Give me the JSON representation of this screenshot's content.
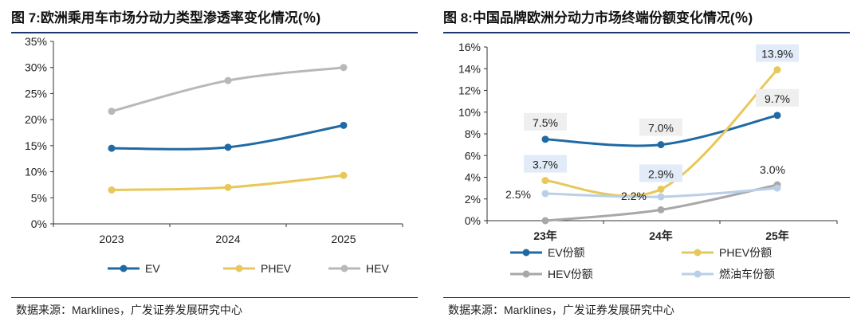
{
  "chart_data": [
    {
      "type": "line",
      "title": "图 7:欧洲乘用车市场分动力类型渗透率变化情况(％)",
      "categories": [
        "2023",
        "2024",
        "2025"
      ],
      "ylim": [
        0,
        35
      ],
      "yticks": [
        "0%",
        "5%",
        "10%",
        "15%",
        "20%",
        "25%",
        "30%",
        "35%"
      ],
      "series": [
        {
          "name": "EV",
          "color": "#1f6aa5",
          "values": [
            14.5,
            14.7,
            18.9
          ]
        },
        {
          "name": "PHEV",
          "color": "#e8c85a",
          "values": [
            6.5,
            7.0,
            9.3
          ]
        },
        {
          "name": "HEV",
          "color": "#b8b8b8",
          "values": [
            21.6,
            27.5,
            30.0
          ]
        }
      ],
      "legend": "bottom",
      "source": "数据来源：Marklines，广发证券发展研究中心"
    },
    {
      "type": "line",
      "title": "图 8:中国品牌欧洲分动力市场终端份额变化情况(％)",
      "categories": [
        "23年",
        "24年",
        "25年"
      ],
      "ylim": [
        0,
        16
      ],
      "yticks": [
        "0%",
        "2%",
        "4%",
        "6%",
        "8%",
        "10%",
        "12%",
        "14%",
        "16%"
      ],
      "series": [
        {
          "name": "EV份额",
          "color": "#1f6aa5",
          "values": [
            7.5,
            7.0,
            9.7
          ],
          "labels": [
            "7.5%",
            "7.0%",
            "9.7%"
          ]
        },
        {
          "name": "PHEV份额",
          "color": "#e8c85a",
          "values": [
            3.7,
            2.9,
            13.9
          ],
          "labels": [
            "3.7%",
            "2.9%",
            "13.9%"
          ]
        },
        {
          "name": "HEV份额",
          "color": "#a8a8a8",
          "values": [
            0.0,
            1.0,
            3.3
          ]
        },
        {
          "name": "燃油车份额",
          "color": "#b9cfe8",
          "values": [
            2.5,
            2.2,
            3.0
          ],
          "labels": [
            "2.5%",
            "2.2%",
            "3.0%"
          ]
        }
      ],
      "legend": "bottom",
      "source": "数据来源：Marklines，广发证券发展研究中心"
    }
  ]
}
